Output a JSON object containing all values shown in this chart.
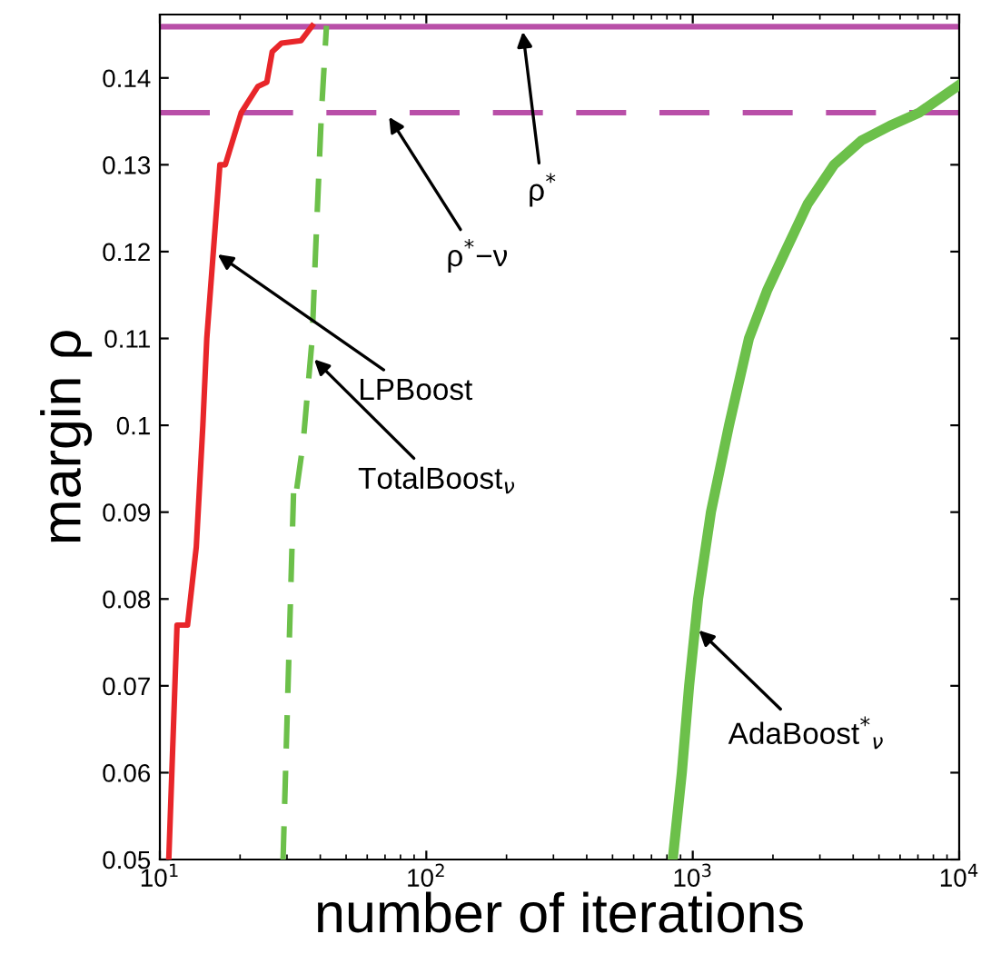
{
  "chart_data": {
    "type": "line",
    "xlabel": "number of iterations",
    "ylabel": "margin ρ",
    "log": "x",
    "xlim": [
      10,
      10000
    ],
    "xticks": [
      {
        "value": 10,
        "label": "10$^{1}$"
      },
      {
        "value": 100,
        "label": "10$^{2}$"
      },
      {
        "value": 1000,
        "label": "10$^{3}$"
      },
      {
        "value": 10000,
        "label": "10$^{4}$"
      }
    ],
    "ylim": [
      0.05,
      0.1473
    ],
    "yticks": [
      0.05,
      0.06,
      0.07,
      0.08,
      0.09,
      0.1,
      0.11,
      0.12,
      0.13,
      0.14
    ],
    "grid": false,
    "legend": false,
    "series": [
      {
        "color": "#e8262a",
        "line_style": "solid",
        "x": [
          10.8,
          11.6,
          12.7,
          13.7,
          14.5,
          15,
          16.8,
          17.6,
          20.2,
          23.3,
          25.2,
          26.4,
          28.6,
          33.9,
          37.3
        ],
        "values": [
          0.05,
          0.077,
          0.077,
          0.086,
          0.1,
          0.11,
          0.13,
          0.13,
          0.136,
          0.139,
          0.1395,
          0.143,
          0.144,
          0.1443,
          0.146
        ]
      },
      {
        "color": "#6cc04a",
        "line_style": "dashed",
        "x": [
          29,
          31.8,
          32.4,
          34.5,
          37.3,
          38.4,
          40.4,
          42.2
        ],
        "values": [
          0.05,
          0.093,
          0.092,
          0.098,
          0.11,
          0.12,
          0.136,
          0.146
        ]
      },
      {
        "color": "#6cc04a",
        "line_style": "solid",
        "x": [
          841,
          910,
          969,
          1047,
          1170,
          1368,
          1625,
          1900,
          2223,
          2700,
          3390,
          4300,
          5500,
          7080,
          10000
        ],
        "values": [
          0.05,
          0.06,
          0.07,
          0.08,
          0.09,
          0.1,
          0.11,
          0.1155,
          0.12,
          0.1255,
          0.13,
          0.1328,
          0.1345,
          0.136,
          0.1392
        ]
      }
    ],
    "ref_lines": [
      {
        "axis": "y",
        "value": 0.1459,
        "color": "#b94fa8",
        "line_style": "solid"
      },
      {
        "axis": "y",
        "value": 0.136,
        "color": "#b94fa8",
        "line_style": "dashed"
      }
    ],
    "annotations": [
      {
        "text": "ρ$^{*}$",
        "x": 229,
        "y": 0.1459
      },
      {
        "text": "ρ$^{*}$−ν",
        "x": 70.8,
        "y": 0.136
      },
      {
        "text": "LPBoost",
        "x": 15.9,
        "y": 0.12
      },
      {
        "text": "TotalBoost$_{ν}$",
        "x": 36.8,
        "y": 0.108
      },
      {
        "text": "AdaBoost$^{*}$$_{ν}$",
        "x": 1022,
        "y": 0.0768
      }
    ]
  }
}
